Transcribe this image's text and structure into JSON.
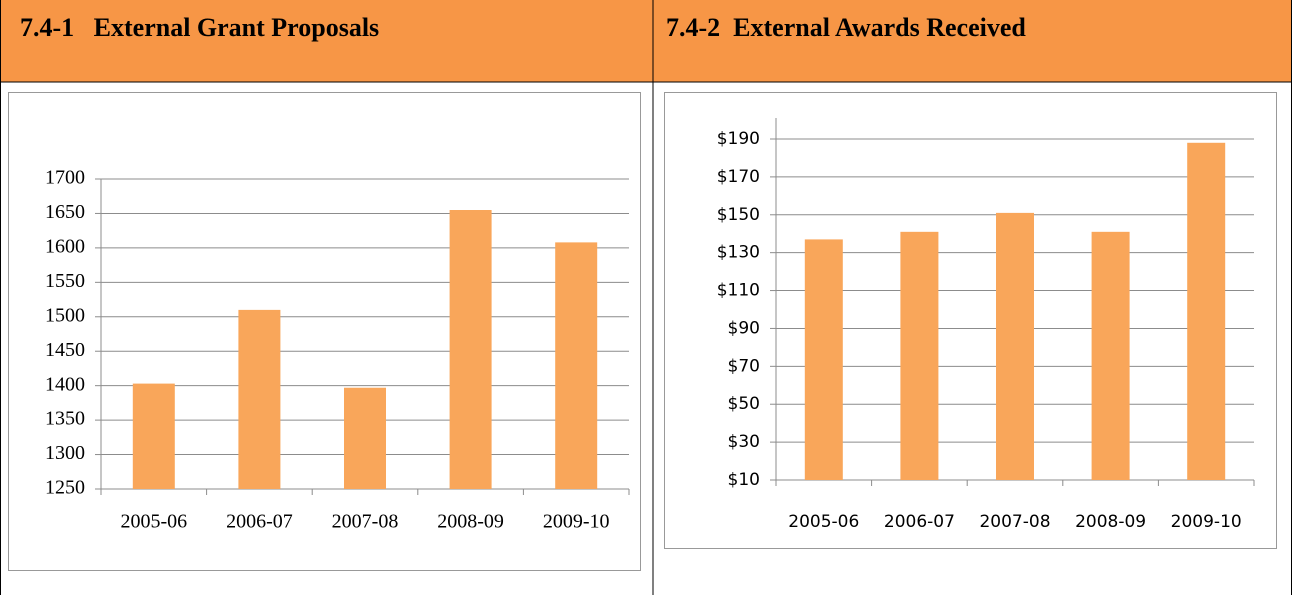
{
  "chart_data": [
    {
      "type": "bar",
      "title": "7.4-1   External Grant Proposals",
      "categories": [
        "2005-06",
        "2006-07",
        "2007-08",
        "2008-09",
        "2009-10"
      ],
      "values": [
        1403,
        1510,
        1397,
        1655,
        1608
      ],
      "color": "#f9a65a",
      "ylim": [
        1250,
        1700
      ],
      "yticks": [
        1250,
        1300,
        1350,
        1400,
        1450,
        1500,
        1550,
        1600,
        1650,
        1700
      ],
      "grid": true
    },
    {
      "type": "bar",
      "title": "7.4-2  External Awards Received",
      "categories": [
        "2005-06",
        "2006-07",
        "2007-08",
        "2008-09",
        "2009-10"
      ],
      "values": [
        137,
        141,
        151,
        141,
        188
      ],
      "color": "#f9a65a",
      "ylim": [
        10,
        190
      ],
      "yticks": [
        {
          "value": 10,
          "label": "$10"
        },
        {
          "value": 30,
          "label": "$30"
        },
        {
          "value": 50,
          "label": "$50"
        },
        {
          "value": 70,
          "label": "$70"
        },
        {
          "value": 90,
          "label": "$90"
        },
        {
          "value": 110,
          "label": "$110"
        },
        {
          "value": 130,
          "label": "$130"
        },
        {
          "value": 150,
          "label": "$150"
        },
        {
          "value": 170,
          "label": "$170"
        },
        {
          "value": 190,
          "label": "$190"
        }
      ],
      "grid": true
    }
  ]
}
